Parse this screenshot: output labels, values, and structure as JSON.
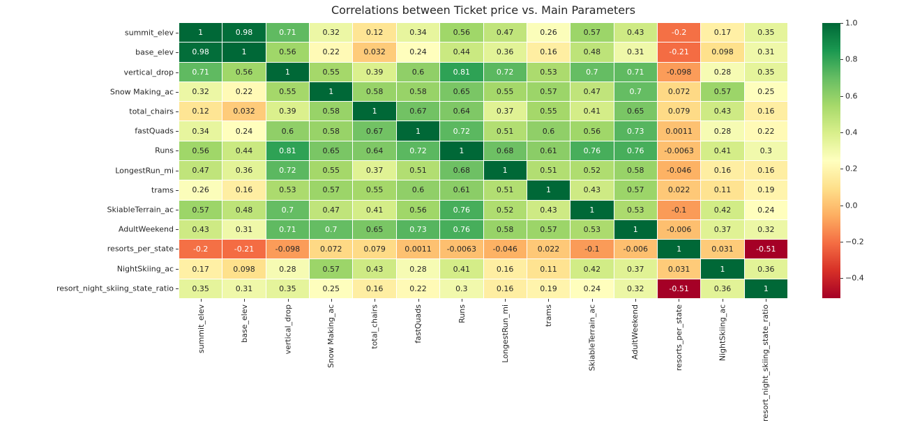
{
  "title": "Correlations between Ticket price vs. Main Parameters",
  "chart_data": {
    "type": "heatmap",
    "title": "Correlations between Ticket price vs. Main Parameters",
    "categories": [
      "summit_elev",
      "base_elev",
      "vertical_drop",
      "Snow Making_ac",
      "total_chairs",
      "fastQuads",
      "Runs",
      "LongestRun_mi",
      "trams",
      "SkiableTerrain_ac",
      "AdultWeekend",
      "resorts_per_state",
      "NightSkiing_ac",
      "resort_night_skiing_state_ratio"
    ],
    "matrix": [
      [
        "1",
        "0.98",
        "0.71",
        "0.32",
        "0.12",
        "0.34",
        "0.56",
        "0.47",
        "0.26",
        "0.57",
        "0.43",
        "-0.2",
        "0.17",
        "0.35"
      ],
      [
        "0.98",
        "1",
        "0.56",
        "0.22",
        "0.032",
        "0.24",
        "0.44",
        "0.36",
        "0.16",
        "0.48",
        "0.31",
        "-0.21",
        "0.098",
        "0.31"
      ],
      [
        "0.71",
        "0.56",
        "1",
        "0.55",
        "0.39",
        "0.6",
        "0.81",
        "0.72",
        "0.53",
        "0.7",
        "0.71",
        "-0.098",
        "0.28",
        "0.35"
      ],
      [
        "0.32",
        "0.22",
        "0.55",
        "1",
        "0.58",
        "0.58",
        "0.65",
        "0.55",
        "0.57",
        "0.47",
        "0.7",
        "0.072",
        "0.57",
        "0.25"
      ],
      [
        "0.12",
        "0.032",
        "0.39",
        "0.58",
        "1",
        "0.67",
        "0.64",
        "0.37",
        "0.55",
        "0.41",
        "0.65",
        "0.079",
        "0.43",
        "0.16"
      ],
      [
        "0.34",
        "0.24",
        "0.6",
        "0.58",
        "0.67",
        "1",
        "0.72",
        "0.51",
        "0.6",
        "0.56",
        "0.73",
        "0.0011",
        "0.28",
        "0.22"
      ],
      [
        "0.56",
        "0.44",
        "0.81",
        "0.65",
        "0.64",
        "0.72",
        "1",
        "0.68",
        "0.61",
        "0.76",
        "0.76",
        "-0.0063",
        "0.41",
        "0.3"
      ],
      [
        "0.47",
        "0.36",
        "0.72",
        "0.55",
        "0.37",
        "0.51",
        "0.68",
        "1",
        "0.51",
        "0.52",
        "0.58",
        "-0.046",
        "0.16",
        "0.16"
      ],
      [
        "0.26",
        "0.16",
        "0.53",
        "0.57",
        "0.55",
        "0.6",
        "0.61",
        "0.51",
        "1",
        "0.43",
        "0.57",
        "0.022",
        "0.11",
        "0.19"
      ],
      [
        "0.57",
        "0.48",
        "0.7",
        "0.47",
        "0.41",
        "0.56",
        "0.76",
        "0.52",
        "0.43",
        "1",
        "0.53",
        "-0.1",
        "0.42",
        "0.24"
      ],
      [
        "0.43",
        "0.31",
        "0.71",
        "0.7",
        "0.65",
        "0.73",
        "0.76",
        "0.58",
        "0.57",
        "0.53",
        "1",
        "-0.006",
        "0.37",
        "0.32"
      ],
      [
        "-0.2",
        "-0.21",
        "-0.098",
        "0.072",
        "0.079",
        "0.0011",
        "-0.0063",
        "-0.046",
        "0.022",
        "-0.1",
        "-0.006",
        "1",
        "0.031",
        "-0.51"
      ],
      [
        "0.17",
        "0.098",
        "0.28",
        "0.57",
        "0.43",
        "0.28",
        "0.41",
        "0.16",
        "0.11",
        "0.42",
        "0.37",
        "0.031",
        "1",
        "0.36"
      ],
      [
        "0.35",
        "0.31",
        "0.35",
        "0.25",
        "0.16",
        "0.22",
        "0.3",
        "0.16",
        "0.19",
        "0.24",
        "0.32",
        "-0.51",
        "0.36",
        "1"
      ]
    ],
    "vmin": -0.51,
    "vmax": 1.0,
    "colormap": {
      "name": "RdYlGn",
      "colors": [
        "#a50026",
        "#d73027",
        "#f46d43",
        "#fdae61",
        "#fee08b",
        "#ffffbf",
        "#d9ef8b",
        "#a6d96a",
        "#66bd63",
        "#1a9850",
        "#006837"
      ]
    },
    "colorbar": {
      "position": "right",
      "ticks": [
        {
          "label": "1.0",
          "value": 1.0
        },
        {
          "label": "0.8",
          "value": 0.8
        },
        {
          "label": "0.6",
          "value": 0.6
        },
        {
          "label": "0.4",
          "value": 0.4
        },
        {
          "label": "0.2",
          "value": 0.2
        },
        {
          "label": "0.0",
          "value": 0.0
        },
        {
          "label": "−0.2",
          "value": -0.2
        },
        {
          "label": "−0.4",
          "value": -0.4
        }
      ]
    },
    "annotations": true,
    "grid": "white-cell-borders",
    "xlabel": "",
    "ylabel": ""
  },
  "colors": {
    "background": "#ffffff",
    "grid_line": "#ffffff",
    "annotation_dark": "#262626",
    "annotation_light": "#ffffff",
    "tick_color": "#333333"
  }
}
